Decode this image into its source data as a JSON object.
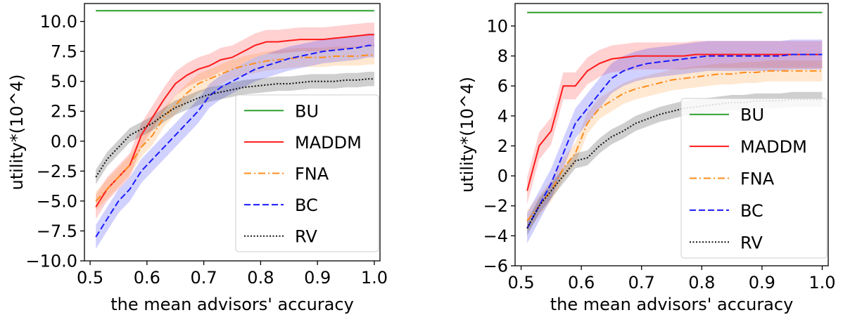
{
  "chart_data": [
    {
      "type": "line",
      "xlabel": "the mean advisors' accuracy",
      "ylabel": "utility*(10^4)",
      "xlim": [
        0.49,
        1.01
      ],
      "ylim": [
        -10.0,
        11.5
      ],
      "xticks": [
        "0.5",
        "0.6",
        "0.7",
        "0.8",
        "0.9",
        "1.0"
      ],
      "yticks": [
        "−10.0",
        "−7.5",
        "−5.0",
        "−2.5",
        "0.0",
        "2.5",
        "5.0",
        "7.5",
        "10.0"
      ],
      "x": [
        0.51,
        0.53,
        0.55,
        0.57,
        0.59,
        0.61,
        0.63,
        0.65,
        0.67,
        0.69,
        0.71,
        0.73,
        0.75,
        0.77,
        0.79,
        0.81,
        0.83,
        0.85,
        0.87,
        0.89,
        0.91,
        0.93,
        0.95,
        0.97,
        0.99,
        1.0
      ],
      "legend": {
        "position": "lower right"
      },
      "series": [
        {
          "name": "BU",
          "color": "#2ca02c",
          "style": "solid",
          "band": 0,
          "values": [
            10.9,
            10.9,
            10.9,
            10.9,
            10.9,
            10.9,
            10.9,
            10.9,
            10.9,
            10.9,
            10.9,
            10.9,
            10.9,
            10.9,
            10.9,
            10.9,
            10.9,
            10.9,
            10.9,
            10.9,
            10.9,
            10.9,
            10.9,
            10.9,
            10.9,
            10.9
          ]
        },
        {
          "name": "MADDM",
          "color": "#ff1a1a",
          "style": "solid",
          "band": 1.0,
          "values": [
            -5.5,
            -4.0,
            -3.0,
            -2.0,
            0.5,
            2.0,
            3.5,
            4.8,
            5.5,
            6.0,
            6.3,
            6.8,
            7.0,
            7.5,
            8.0,
            8.3,
            8.3,
            8.4,
            8.5,
            8.5,
            8.5,
            8.6,
            8.7,
            8.8,
            8.9,
            8.9
          ]
        },
        {
          "name": "FNA",
          "color": "#ff8c1a",
          "style": "dashdot",
          "band": 0.8,
          "values": [
            -5.0,
            -4.0,
            -3.0,
            -2.0,
            -0.5,
            0.5,
            2.0,
            3.0,
            4.0,
            4.8,
            5.2,
            5.6,
            6.0,
            6.3,
            6.5,
            6.7,
            6.8,
            6.9,
            7.0,
            7.0,
            7.0,
            7.1,
            7.1,
            7.1,
            7.2,
            7.2
          ]
        },
        {
          "name": "BC",
          "color": "#1a1aff",
          "style": "dashed",
          "band": 1.0,
          "values": [
            -8.0,
            -6.5,
            -5.0,
            -4.0,
            -2.5,
            -1.5,
            -0.5,
            0.5,
            1.5,
            2.5,
            3.8,
            4.5,
            5.0,
            5.5,
            6.0,
            6.3,
            6.6,
            6.9,
            7.1,
            7.3,
            7.5,
            7.6,
            7.7,
            7.8,
            8.0,
            8.0
          ]
        },
        {
          "name": "RV",
          "color": "#111111",
          "style": "dotted",
          "band": 0.6,
          "values": [
            -3.0,
            -1.5,
            -0.5,
            0.5,
            1.0,
            1.5,
            2.2,
            2.8,
            3.2,
            3.6,
            3.9,
            4.1,
            4.3,
            4.5,
            4.6,
            4.7,
            4.8,
            4.8,
            4.9,
            5.0,
            5.0,
            5.0,
            5.1,
            5.1,
            5.2,
            5.2
          ]
        }
      ]
    },
    {
      "type": "line",
      "xlabel": "the mean advisors' accuracy",
      "ylabel": "utility*(10^4)",
      "xlim": [
        0.49,
        1.01
      ],
      "ylim": [
        -6.0,
        11.5
      ],
      "xticks": [
        "0.5",
        "0.6",
        "0.7",
        "0.8",
        "0.9",
        "1.0"
      ],
      "yticks": [
        "−6",
        "−4",
        "−2",
        "0",
        "2",
        "4",
        "6",
        "8",
        "10"
      ],
      "x": [
        0.51,
        0.53,
        0.55,
        0.57,
        0.59,
        0.61,
        0.63,
        0.65,
        0.67,
        0.69,
        0.71,
        0.73,
        0.75,
        0.77,
        0.79,
        0.81,
        0.83,
        0.85,
        0.87,
        0.89,
        0.91,
        0.93,
        0.95,
        0.97,
        0.99,
        1.0
      ],
      "legend": {
        "position": "lower right"
      },
      "series": [
        {
          "name": "BU",
          "color": "#2ca02c",
          "style": "solid",
          "band": 0,
          "values": [
            10.9,
            10.9,
            10.9,
            10.9,
            10.9,
            10.9,
            10.9,
            10.9,
            10.9,
            10.9,
            10.9,
            10.9,
            10.9,
            10.9,
            10.9,
            10.9,
            10.9,
            10.9,
            10.9,
            10.9,
            10.9,
            10.9,
            10.9,
            10.9,
            10.9,
            10.9
          ]
        },
        {
          "name": "MADDM",
          "color": "#ff1a1a",
          "style": "solid",
          "band": 0.9,
          "values": [
            -1.0,
            2.0,
            3.0,
            6.0,
            6.0,
            7.0,
            7.5,
            7.8,
            7.9,
            8.0,
            8.0,
            8.0,
            8.0,
            8.0,
            8.1,
            8.1,
            8.1,
            8.1,
            8.1,
            8.1,
            8.1,
            8.1,
            8.1,
            8.1,
            8.1,
            8.1
          ]
        },
        {
          "name": "FNA",
          "color": "#ff8c1a",
          "style": "dashdot",
          "band": 0.7,
          "values": [
            -3.0,
            -2.0,
            -1.0,
            0.5,
            1.5,
            3.5,
            4.5,
            5.0,
            5.5,
            5.8,
            6.0,
            6.2,
            6.4,
            6.5,
            6.6,
            6.7,
            6.8,
            6.8,
            6.9,
            6.9,
            7.0,
            7.0,
            7.0,
            7.0,
            7.0,
            7.0
          ]
        },
        {
          "name": "BC",
          "color": "#1a1aff",
          "style": "dashed",
          "band": 1.0,
          "values": [
            -3.5,
            -2.0,
            -0.5,
            1.5,
            3.5,
            4.5,
            5.5,
            6.5,
            7.0,
            7.3,
            7.5,
            7.6,
            7.7,
            7.8,
            7.9,
            8.0,
            8.0,
            8.0,
            8.0,
            8.0,
            8.0,
            8.0,
            8.1,
            8.1,
            8.1,
            8.1
          ]
        },
        {
          "name": "RV",
          "color": "#111111",
          "style": "dotted",
          "band": 0.5,
          "values": [
            -3.5,
            -2.0,
            -1.0,
            0.0,
            1.0,
            1.2,
            2.0,
            2.6,
            3.0,
            3.5,
            3.8,
            4.1,
            4.3,
            4.5,
            4.6,
            4.7,
            4.8,
            4.9,
            4.9,
            5.0,
            5.0,
            5.0,
            5.1,
            5.1,
            5.1,
            5.1
          ]
        }
      ]
    }
  ]
}
